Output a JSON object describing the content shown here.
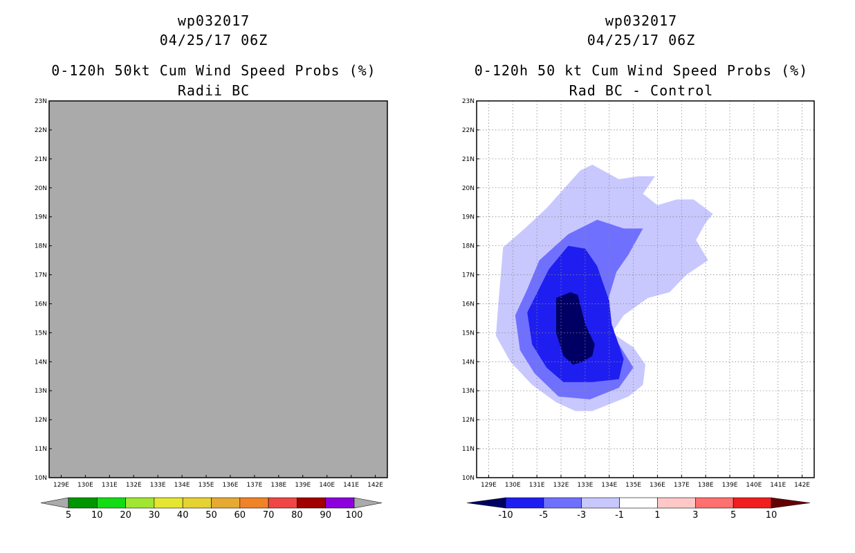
{
  "chart_data": [
    {
      "type": "heatmap",
      "id": "radii-bc",
      "title_lines": [
        "wp032017",
        "04/25/17 06Z",
        "0-120h 50kt Cum Wind Speed Probs (%)",
        "Radii BC"
      ],
      "x_ticks": [
        "129E",
        "130E",
        "131E",
        "132E",
        "133E",
        "134E",
        "135E",
        "136E",
        "137E",
        "138E",
        "139E",
        "140E",
        "141E",
        "142E"
      ],
      "y_ticks": [
        "10N",
        "11N",
        "12N",
        "13N",
        "14N",
        "15N",
        "16N",
        "17N",
        "18N",
        "19N",
        "20N",
        "21N",
        "22N",
        "23N"
      ],
      "xlim": [
        128.5,
        142.5
      ],
      "ylim": [
        10,
        23
      ],
      "grid": false,
      "field_color": "#aaaaaa",
      "field_note": "undefined / no data over entire domain",
      "colorbar": {
        "labels": [
          "5",
          "10",
          "20",
          "30",
          "40",
          "50",
          "60",
          "70",
          "80",
          "90",
          "100"
        ],
        "colors": [
          "#aaaaaa",
          "#009600",
          "#14dc14",
          "#a0e632",
          "#e6e632",
          "#e6d232",
          "#e6aa32",
          "#f08228",
          "#f04646",
          "#a00000",
          "#8c00dc",
          "#aaaaaa"
        ]
      }
    },
    {
      "type": "heatmap",
      "id": "rad-bc-minus-control",
      "title_lines": [
        "wp032017",
        "04/25/17 06Z",
        "0-120h 50 kt Cum Wind Speed Probs (%)",
        "Rad BC - Control"
      ],
      "x_ticks": [
        "129E",
        "130E",
        "131E",
        "132E",
        "133E",
        "134E",
        "135E",
        "136E",
        "137E",
        "138E",
        "139E",
        "140E",
        "141E",
        "142E"
      ],
      "y_ticks": [
        "10N",
        "11N",
        "12N",
        "13N",
        "14N",
        "15N",
        "16N",
        "17N",
        "18N",
        "19N",
        "20N",
        "21N",
        "22N",
        "23N"
      ],
      "xlim": [
        128.5,
        142.5
      ],
      "ylim": [
        10,
        23
      ],
      "grid": true,
      "contours": [
        {
          "level": "-3 to -1",
          "color": "#c8c8ff",
          "points": [
            [
              129.6,
              17.95
            ],
            [
              130.5,
              18.6
            ],
            [
              131.4,
              19.3
            ],
            [
              132.8,
              20.6
            ],
            [
              133.3,
              20.8
            ],
            [
              134.4,
              20.3
            ],
            [
              135.2,
              20.4
            ],
            [
              135.6,
              20.4
            ],
            [
              135.9,
              20.4
            ],
            [
              135.4,
              19.8
            ],
            [
              136.0,
              19.4
            ],
            [
              136.8,
              19.6
            ],
            [
              137.5,
              19.6
            ],
            [
              138.3,
              19.1
            ],
            [
              138.0,
              18.8
            ],
            [
              137.6,
              18.2
            ],
            [
              138.1,
              17.5
            ],
            [
              137.2,
              17.0
            ],
            [
              136.5,
              16.4
            ],
            [
              135.6,
              16.2
            ],
            [
              134.6,
              15.6
            ],
            [
              134.1,
              15.0
            ],
            [
              135.0,
              14.5
            ],
            [
              135.5,
              13.9
            ],
            [
              135.4,
              13.2
            ],
            [
              134.8,
              12.8
            ],
            [
              133.3,
              12.3
            ],
            [
              132.6,
              12.3
            ],
            [
              131.8,
              12.6
            ],
            [
              130.8,
              13.2
            ],
            [
              129.9,
              14.0
            ],
            [
              129.3,
              14.9
            ],
            [
              129.4,
              16.0
            ]
          ]
        },
        {
          "level": "-5 to -3",
          "color": "#7070ff",
          "points": [
            [
              130.1,
              15.6
            ],
            [
              130.6,
              16.5
            ],
            [
              131.1,
              17.5
            ],
            [
              132.3,
              18.4
            ],
            [
              133.5,
              18.9
            ],
            [
              134.6,
              18.6
            ],
            [
              135.4,
              18.6
            ],
            [
              134.8,
              17.7
            ],
            [
              134.3,
              17.1
            ],
            [
              133.9,
              16.0
            ],
            [
              134.0,
              15.1
            ],
            [
              134.4,
              14.6
            ],
            [
              135.0,
              13.8
            ],
            [
              134.4,
              13.1
            ],
            [
              133.2,
              12.7
            ],
            [
              131.9,
              12.8
            ],
            [
              130.9,
              13.6
            ],
            [
              130.3,
              14.4
            ]
          ]
        },
        {
          "level": "-10 to -5",
          "color": "#1e1ef0",
          "points": [
            [
              130.6,
              15.7
            ],
            [
              131.5,
              17.2
            ],
            [
              132.3,
              18.0
            ],
            [
              133.0,
              17.9
            ],
            [
              133.5,
              17.3
            ],
            [
              134.0,
              16.1
            ],
            [
              134.1,
              15.3
            ],
            [
              134.6,
              14.1
            ],
            [
              134.4,
              13.4
            ],
            [
              133.3,
              13.3
            ],
            [
              132.1,
              13.3
            ],
            [
              131.4,
              13.8
            ],
            [
              130.8,
              14.6
            ]
          ]
        },
        {
          "level": "< -10",
          "color": "#000064",
          "points": [
            [
              131.8,
              16.2
            ],
            [
              132.4,
              16.4
            ],
            [
              132.7,
              16.3
            ],
            [
              133.0,
              15.3
            ],
            [
              133.4,
              14.6
            ],
            [
              133.3,
              14.2
            ],
            [
              132.9,
              14.0
            ],
            [
              132.5,
              13.9
            ],
            [
              132.1,
              14.2
            ],
            [
              131.8,
              15.0
            ]
          ]
        }
      ],
      "colorbar": {
        "labels": [
          "-10",
          "-5",
          "-3",
          "-1",
          "1",
          "3",
          "5",
          "10"
        ],
        "colors": [
          "#000064",
          "#1e1ef0",
          "#7070ff",
          "#c8c8ff",
          "#ffffff",
          "#ffc8c8",
          "#ff7070",
          "#f01e1e",
          "#640000"
        ]
      }
    }
  ]
}
